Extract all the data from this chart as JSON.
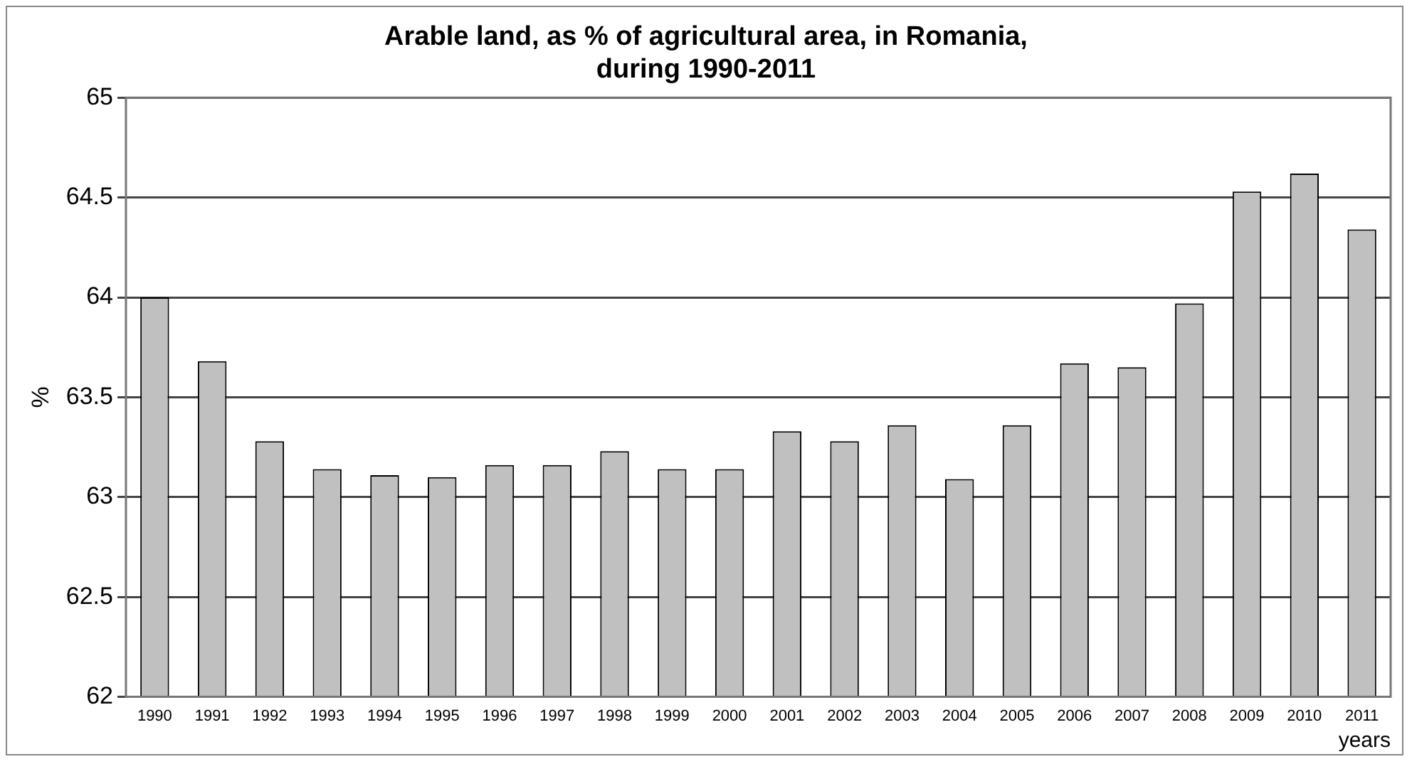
{
  "chart_data": {
    "type": "bar",
    "title": "Arable land, as % of agricultural area, in Romania,\nduring 1990-2011",
    "xlabel": "years",
    "ylabel": "%",
    "categories": [
      "1990",
      "1991",
      "1992",
      "1993",
      "1994",
      "1995",
      "1996",
      "1997",
      "1998",
      "1999",
      "2000",
      "2001",
      "2002",
      "2003",
      "2004",
      "2005",
      "2006",
      "2007",
      "2008",
      "2009",
      "2010",
      "2011"
    ],
    "values": [
      64.0,
      63.68,
      63.28,
      63.14,
      63.11,
      63.1,
      63.16,
      63.16,
      63.23,
      63.14,
      63.14,
      63.33,
      63.28,
      63.36,
      63.09,
      63.36,
      63.67,
      63.65,
      63.97,
      64.53,
      64.62,
      64.34
    ],
    "color": "#c0c0c0",
    "ylim": [
      62,
      65
    ],
    "yticks": [
      62,
      62.5,
      63,
      63.5,
      64,
      64.5,
      65
    ],
    "grid": "y"
  }
}
